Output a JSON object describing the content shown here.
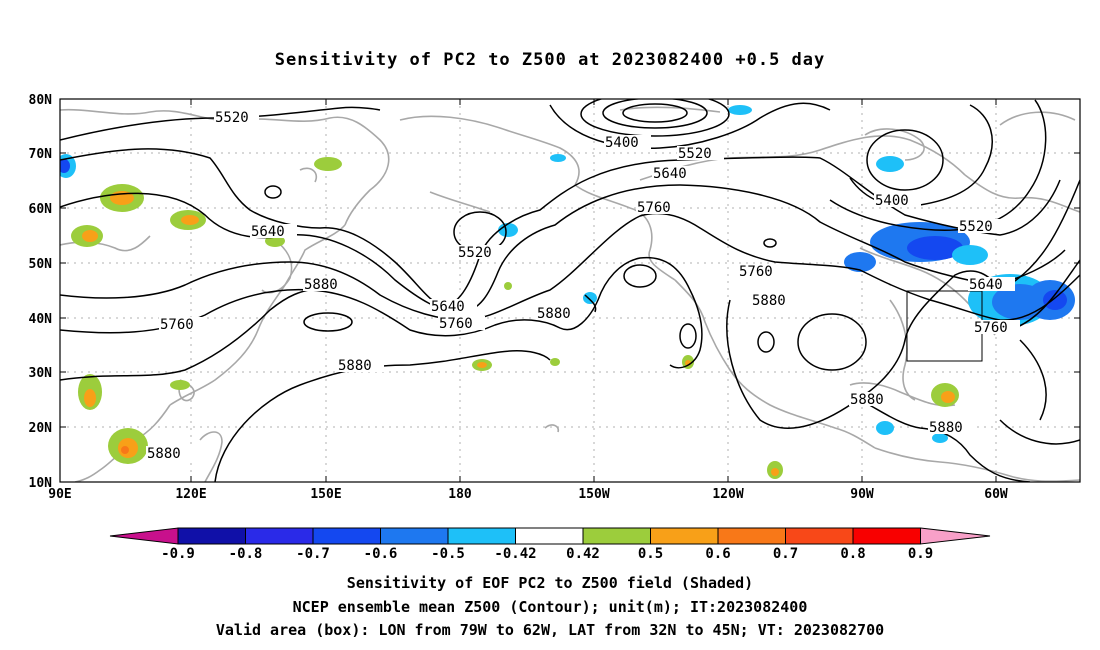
{
  "title": "Sensitivity of PC2 to Z500 at 2023082400 +0.5 day",
  "lat_labels": [
    "80N",
    "70N",
    "60N",
    "50N",
    "40N",
    "30N",
    "20N",
    "10N"
  ],
  "lon_labels": [
    "90E",
    "120E",
    "150E",
    "180",
    "150W",
    "120W",
    "90W",
    "60W"
  ],
  "contour_labels": {
    "c5520a": "5520",
    "c5400a": "5400",
    "c5520b": "5520",
    "c5640a": "5640",
    "c5760a": "5760",
    "c5400b": "5400",
    "c5520c": "5520",
    "c5640b": "5640",
    "c5520d": "5520",
    "c5880a": "5880",
    "c5760b": "5760",
    "c5640c": "5640",
    "c5760c": "5760",
    "c5880b": "5880",
    "c5760d": "5760",
    "c5880c": "5880",
    "c5640d": "5640",
    "c5760e": "5760",
    "c5880d": "5880",
    "c5880e": "5880",
    "c5880f": "5880",
    "c5880g": "5880"
  },
  "colorbar": {
    "labels": [
      "-0.9",
      "-0.8",
      "-0.7",
      "-0.6",
      "-0.5",
      "-0.42",
      "0.42",
      "0.5",
      "0.6",
      "0.7",
      "0.8",
      "0.9"
    ],
    "colors": [
      "#1010a8",
      "#2a2ae8",
      "#1448f0",
      "#1e78f0",
      "#1ec0f8",
      "#ffffff",
      "#9ccd3c",
      "#f8a018",
      "#f87818",
      "#f84818",
      "#f80000"
    ],
    "under_color": "#c8108c",
    "over_color": "#f8a0c8"
  },
  "valid_box": {
    "lon_from": "79W",
    "lon_to": "62W",
    "lat_from": "32N",
    "lat_to": "45N"
  },
  "captions": {
    "line1": "Sensitivity of EOF PC2 to Z500 field (Shaded)",
    "line2": "NCEP ensemble mean Z500 (Contour); unit(m); IT:2023082400",
    "line3": "Valid area (box): LON from 79W to 62W, LAT from 32N to 45N; VT: 2023082700"
  }
}
